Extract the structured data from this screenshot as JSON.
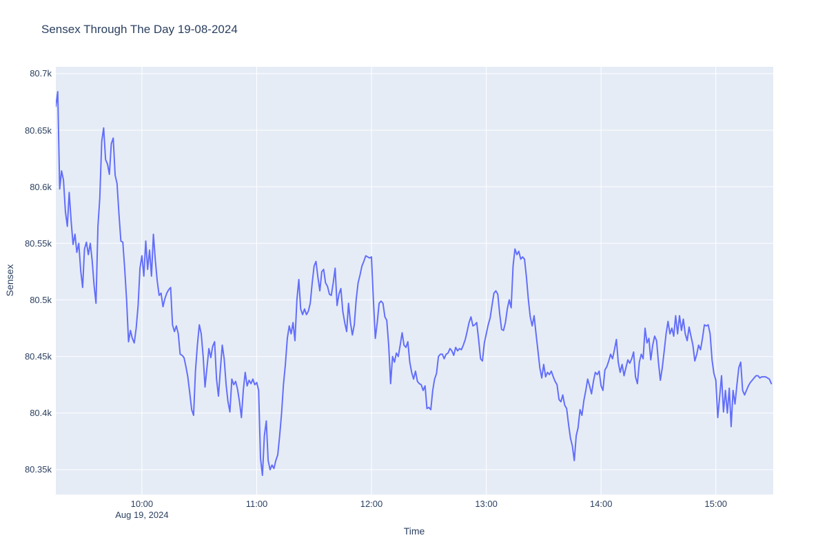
{
  "page": {
    "background": "#ffffff"
  },
  "chart_data": {
    "type": "line",
    "title": "Sensex Through The Day 19-08-2024",
    "xlabel": "Time",
    "ylabel": "Sensex",
    "legend": false,
    "grid": true,
    "plot_bgcolor": "#e5ecf6",
    "grid_color": "#ffffff",
    "text_color": "#2a3f5f",
    "line_color": "#636efa",
    "x_range": [
      "09:15",
      "15:30"
    ],
    "ylim": [
      80328,
      80706
    ],
    "yticks": [
      {
        "value": 80350,
        "label": "80.35k"
      },
      {
        "value": 80400,
        "label": "80.4k"
      },
      {
        "value": 80450,
        "label": "80.45k"
      },
      {
        "value": 80500,
        "label": "80.5k"
      },
      {
        "value": 80550,
        "label": "80.55k"
      },
      {
        "value": 80600,
        "label": "80.6k"
      },
      {
        "value": 80650,
        "label": "80.65k"
      },
      {
        "value": 80700,
        "label": "80.7k"
      }
    ],
    "xticks": [
      {
        "time": "10:00",
        "label": "10:00",
        "sub": "Aug 19, 2024"
      },
      {
        "time": "11:00",
        "label": "11:00"
      },
      {
        "time": "12:00",
        "label": "12:00"
      },
      {
        "time": "13:00",
        "label": "13:00"
      },
      {
        "time": "14:00",
        "label": "14:00"
      },
      {
        "time": "15:00",
        "label": "15:00"
      }
    ],
    "series": [
      {
        "name": "Sensex",
        "start": "09:15",
        "interval_minutes": 1,
        "values": [
          80671,
          80684,
          80598,
          80614,
          80606,
          80578,
          80565,
          80595,
          80570,
          80549,
          80558,
          80542,
          80550,
          80526,
          80511,
          80545,
          80551,
          80540,
          80550,
          80535,
          80513,
          80497,
          80565,
          80590,
          80640,
          80652,
          80624,
          80620,
          80611,
          80638,
          80643,
          80610,
          80603,
          80576,
          80552,
          80551,
          80528,
          80500,
          80463,
          80473,
          80466,
          80462,
          80475,
          80495,
          80528,
          80539,
          80521,
          80552,
          80527,
          80544,
          80521,
          80558,
          80535,
          80517,
          80504,
          80506,
          80494,
          80501,
          80506,
          80509,
          80511,
          80478,
          80472,
          80477,
          80470,
          80452,
          80451,
          80449,
          80441,
          80432,
          80418,
          80403,
          80398,
          80437,
          80460,
          80478,
          80470,
          80450,
          80423,
          80440,
          80457,
          80449,
          80459,
          80463,
          80430,
          80415,
          80438,
          80460,
          80448,
          80425,
          80410,
          80401,
          80430,
          80425,
          80428,
          80421,
          80410,
          80396,
          80420,
          80436,
          80424,
          80429,
          80426,
          80430,
          80425,
          80427,
          80420,
          80360,
          80345,
          80380,
          80393,
          80358,
          80350,
          80354,
          80351,
          80358,
          80363,
          80380,
          80400,
          80425,
          80443,
          80466,
          80477,
          80470,
          80480,
          80464,
          80500,
          80518,
          80492,
          80487,
          80492,
          80487,
          80490,
          80497,
          80515,
          80530,
          80534,
          80520,
          80508,
          80525,
          80527,
          80515,
          80512,
          80505,
          80504,
          80515,
          80528,
          80495,
          80505,
          80510,
          80490,
          80480,
          80472,
          80497,
          80480,
          80469,
          80478,
          80500,
          80515,
          80522,
          80530,
          80534,
          80539,
          80538,
          80537,
          80538,
          80500,
          80466,
          80480,
          80497,
          80499,
          80497,
          80485,
          80482,
          80460,
          80426,
          80450,
          80445,
          80453,
          80450,
          80460,
          80471,
          80460,
          80458,
          80463,
          80445,
          80436,
          80430,
          80437,
          80428,
          80426,
          80425,
          80420,
          80424,
          80404,
          80405,
          80403,
          80420,
          80430,
          80435,
          80450,
          80452,
          80452,
          80448,
          80452,
          80453,
          80457,
          80455,
          80451,
          80458,
          80455,
          80457,
          80456,
          80460,
          80465,
          80472,
          80480,
          80485,
          80477,
          80478,
          80480,
          80465,
          80448,
          80446,
          80462,
          80470,
          80478,
          80484,
          80495,
          80506,
          80508,
          80505,
          80488,
          80474,
          80473,
          80480,
          80492,
          80500,
          80493,
          80530,
          80545,
          80540,
          80543,
          80536,
          80538,
          80536,
          80520,
          80500,
          80485,
          80477,
          80486,
          80470,
          80455,
          80440,
          80431,
          80443,
          80432,
          80436,
          80434,
          80437,
          80432,
          80428,
          80425,
          80412,
          80410,
          80416,
          80407,
          80404,
          80390,
          80378,
          80371,
          80358,
          80380,
          80387,
          80403,
          80398,
          80411,
          80420,
          80430,
          80424,
          80417,
          80428,
          80436,
          80434,
          80437,
          80424,
          80420,
          80438,
          80441,
          80446,
          80452,
          80448,
          80456,
          80465,
          80445,
          80436,
          80443,
          80433,
          80440,
          80447,
          80444,
          80448,
          80454,
          80432,
          80426,
          80445,
          80452,
          80448,
          80475,
          80462,
          80466,
          80447,
          80460,
          80468,
          80464,
          80445,
          80429,
          80440,
          80455,
          80470,
          80481,
          80470,
          80475,
          80468,
          80486,
          80470,
          80486,
          80473,
          80483,
          80470,
          80464,
          80476,
          80468,
          80460,
          80446,
          80452,
          80460,
          80456,
          80466,
          80478,
          80477,
          80478,
          80470,
          80447,
          80435,
          80429,
          80396,
          80415,
          80433,
          80401,
          80420,
          80400,
          80422,
          80388,
          80420,
          80408,
          80425,
          80440,
          80445,
          80420,
          80416,
          80420,
          80424,
          80427,
          80429,
          80431,
          80433,
          80433,
          80431,
          80432,
          80432,
          80432,
          80431,
          80430,
          80426
        ]
      }
    ]
  }
}
